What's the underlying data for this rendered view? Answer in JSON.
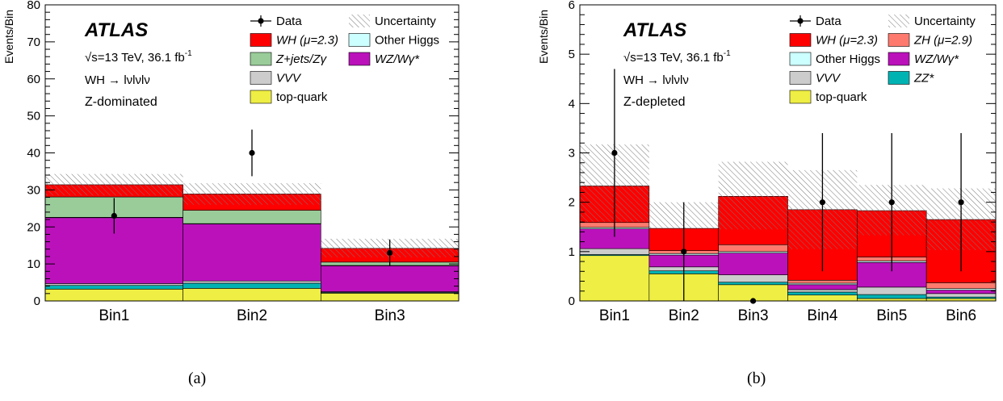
{
  "colors": {
    "WH": "#ff0000",
    "ZH": "#ff7a6e",
    "Zjets": "#99cc99",
    "WZ": "#bb11bb",
    "VVV": "#cccccc",
    "ZZ": "#00b3b3",
    "OtherHiggs": "#ccffff",
    "top": "#eeee44"
  },
  "captions": {
    "a": "(a)",
    "b": "(b)"
  },
  "chart_data": [
    {
      "type": "bar",
      "stacked": true,
      "panel_caption": "(a)",
      "ylabel": "Events/Bin",
      "xlabel": "",
      "categories": [
        "Bin1",
        "Bin2",
        "Bin3"
      ],
      "ylim": [
        0,
        80
      ],
      "yticks": [
        0,
        10,
        20,
        30,
        40,
        50,
        60,
        70,
        80
      ],
      "atlas_label": "ATLAS",
      "energy_label": "√s=13 TeV, 36.1 fb",
      "energy_superscript": "-1",
      "process_label": "WH → lνlνlν",
      "region_label": "Z-dominated",
      "series": [
        {
          "name": "top-quark",
          "key": "top",
          "values": [
            3.2,
            3.4,
            2.1
          ]
        },
        {
          "name": "ZZ*",
          "key": "ZZ",
          "values": [
            1.0,
            1.4,
            0.2
          ]
        },
        {
          "name": "VVV",
          "key": "VVV",
          "values": [
            0.5,
            0.6,
            0.2
          ]
        },
        {
          "name": "WZ/Wγ*",
          "key": "WZ",
          "values": [
            17.8,
            15.4,
            7.0
          ]
        },
        {
          "name": "Other Higgs",
          "key": "OtherHiggs",
          "values": [
            0.1,
            0.1,
            0.1
          ]
        },
        {
          "name": "Z+jets/Zγ",
          "key": "Zjets",
          "values": [
            5.5,
            3.6,
            0.9
          ]
        },
        {
          "name": "WH (μ=2.3)",
          "key": "WH",
          "values": [
            3.3,
            4.4,
            3.7
          ]
        }
      ],
      "data": {
        "name": "Data",
        "values": [
          23,
          40,
          13
        ],
        "err_up": [
          4.8,
          6.3,
          3.6
        ],
        "err_down": [
          4.8,
          6.3,
          3.6
        ]
      },
      "uncertainty": {
        "name": "Uncertainty",
        "up": [
          34.3,
          31.8,
          16.8
        ],
        "down": [
          28.5,
          26.0,
          11.8
        ]
      },
      "legend": {
        "col1": [
          {
            "label": "Data",
            "kind": "data"
          },
          {
            "label": "WH (μ=2.3)",
            "kind": "fill",
            "key": "WH"
          },
          {
            "label": "Z+jets/Zγ",
            "kind": "fill",
            "key": "Zjets"
          },
          {
            "label": "VVV",
            "kind": "fill",
            "key": "VVV"
          },
          {
            "label": "top-quark",
            "kind": "fill",
            "key": "top"
          }
        ],
        "col2": [
          {
            "label": "Uncertainty",
            "kind": "hatch"
          },
          {
            "label": "Other Higgs",
            "kind": "fill",
            "key": "OtherHiggs"
          },
          {
            "label": "WZ/Wγ*",
            "kind": "fill",
            "key": "WZ"
          }
        ]
      }
    },
    {
      "type": "bar",
      "stacked": true,
      "panel_caption": "(b)",
      "ylabel": "Events/Bin",
      "xlabel": "",
      "categories": [
        "Bin1",
        "Bin2",
        "Bin3",
        "Bin4",
        "Bin5",
        "Bin6"
      ],
      "ylim": [
        0,
        6
      ],
      "yticks": [
        0,
        1,
        2,
        3,
        4,
        5,
        6
      ],
      "atlas_label": "ATLAS",
      "energy_label": "√s=13 TeV, 36.1 fb",
      "energy_superscript": "-1",
      "process_label": "WH → lνlνlν",
      "region_label": "Z-depleted",
      "series": [
        {
          "name": "top-quark",
          "key": "top",
          "values": [
            0.92,
            0.55,
            0.33,
            0.12,
            0.05,
            0.05
          ]
        },
        {
          "name": "ZZ*",
          "key": "ZZ",
          "values": [
            0.02,
            0.06,
            0.05,
            0.06,
            0.08,
            0.03
          ]
        },
        {
          "name": "VVV",
          "key": "VVV",
          "values": [
            0.12,
            0.08,
            0.15,
            0.05,
            0.15,
            0.07
          ]
        },
        {
          "name": "WZ/Wγ*",
          "key": "WZ",
          "values": [
            0.4,
            0.24,
            0.44,
            0.1,
            0.5,
            0.07
          ]
        },
        {
          "name": "Other Higgs",
          "key": "OtherHiggs",
          "values": [
            0.03,
            0.03,
            0.03,
            0.03,
            0.03,
            0.03
          ]
        },
        {
          "name": "ZH (μ=2.9)",
          "key": "ZH",
          "values": [
            0.1,
            0.06,
            0.14,
            0.06,
            0.08,
            0.12
          ]
        },
        {
          "name": "WH (μ=2.3)",
          "key": "WH",
          "values": [
            0.74,
            0.45,
            0.98,
            1.43,
            0.94,
            1.28
          ]
        }
      ],
      "data": {
        "name": "Data",
        "values": [
          3,
          1,
          0,
          2,
          2,
          2
        ],
        "err_up": [
          1.7,
          1.0,
          0.0,
          1.4,
          1.4,
          1.4
        ],
        "err_down": [
          1.7,
          1.0,
          0.0,
          1.4,
          1.4,
          1.4
        ]
      },
      "uncertainty": {
        "name": "Uncertainty",
        "up": [
          3.17,
          2.0,
          2.82,
          2.65,
          2.35,
          2.28
        ],
        "down": [
          1.6,
          1.47,
          1.45,
          1.05,
          1.33,
          1.03
        ]
      },
      "legend": {
        "col1": [
          {
            "label": "Data",
            "kind": "data"
          },
          {
            "label": "WH (μ=2.3)",
            "kind": "fill",
            "key": "WH"
          },
          {
            "label": "Other Higgs",
            "kind": "fill",
            "key": "OtherHiggs"
          },
          {
            "label": "VVV",
            "kind": "fill",
            "key": "VVV"
          },
          {
            "label": "top-quark",
            "kind": "fill",
            "key": "top"
          }
        ],
        "col2": [
          {
            "label": "Uncertainty",
            "kind": "hatch"
          },
          {
            "label": "ZH (μ=2.9)",
            "kind": "fill",
            "key": "ZH"
          },
          {
            "label": "WZ/Wγ*",
            "kind": "fill",
            "key": "WZ"
          },
          {
            "label": "ZZ*",
            "kind": "fill",
            "key": "ZZ"
          }
        ]
      }
    }
  ]
}
